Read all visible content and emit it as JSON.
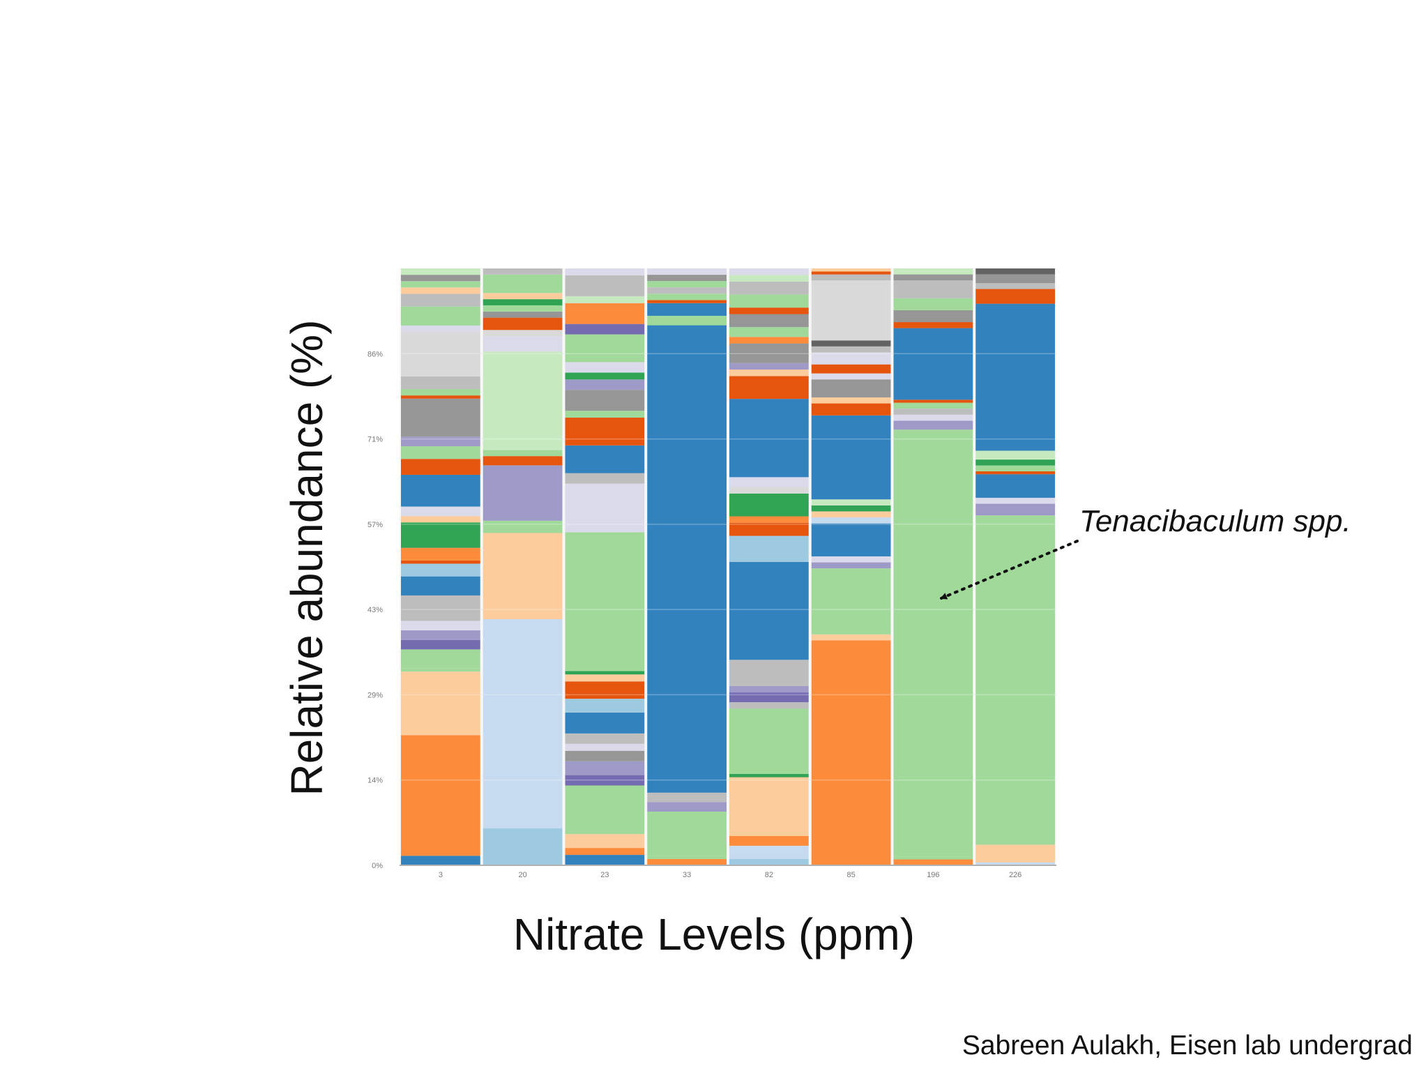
{
  "credit": "Sabreen Aulakh, Eisen lab undergrad",
  "chart_data": {
    "type": "bar",
    "stacked": true,
    "normalized": true,
    "xlabel": "Nitrate Levels (ppm)",
    "ylabel": "Relative abundance (%)",
    "categories": [
      "3",
      "20",
      "23",
      "33",
      "82",
      "85",
      "196",
      "226"
    ],
    "y_ticks": [
      "0%",
      "14%",
      "29%",
      "43%",
      "57%",
      "71%",
      "86%"
    ],
    "ylim": [
      0,
      100
    ],
    "grid": true,
    "colors": {
      "orange": "#fd8b3c",
      "peach": "#fdcc9c",
      "dark_orange": "#e6550d",
      "blue": "#3182bd",
      "light_blue": "#9ecae1",
      "pale_blue": "#c6dbef",
      "green": "#a1d99b",
      "pale_green": "#c7e9c0",
      "dark_green": "#31a354",
      "purple": "#9e9ac8",
      "dark_purple": "#756bb1",
      "lavender": "#dadaeb",
      "gray": "#969696",
      "light_gray": "#bdbdbd",
      "pale_gray": "#d9d9d9",
      "dark_gray": "#636363"
    },
    "stacks": [
      {
        "category": "3",
        "segments": [
          {
            "color": "blue",
            "value": 1.5
          },
          {
            "color": "orange",
            "value": 19
          },
          {
            "color": "peach",
            "value": 10
          },
          {
            "color": "green",
            "value": 0.5
          },
          {
            "color": "green",
            "value": 3
          },
          {
            "color": "dark_purple",
            "value": 1.5
          },
          {
            "color": "purple",
            "value": 1.5
          },
          {
            "color": "lavender",
            "value": 1.5
          },
          {
            "color": "light_gray",
            "value": 4
          },
          {
            "color": "blue",
            "value": 3
          },
          {
            "color": "light_blue",
            "value": 2
          },
          {
            "color": "dark_orange",
            "value": 0.5
          },
          {
            "color": "orange",
            "value": 2
          },
          {
            "color": "dark_green",
            "value": 4
          },
          {
            "color": "peach",
            "value": 1
          },
          {
            "color": "lavender",
            "value": 1.5
          },
          {
            "color": "blue",
            "value": 5
          },
          {
            "color": "dark_orange",
            "value": 2.5
          },
          {
            "color": "green",
            "value": 2
          },
          {
            "color": "purple",
            "value": 1.5
          },
          {
            "color": "gray",
            "value": 6
          },
          {
            "color": "dark_orange",
            "value": 0.5
          },
          {
            "color": "green",
            "value": 1
          },
          {
            "color": "light_gray",
            "value": 2
          },
          {
            "color": "pale_gray",
            "value": 7
          },
          {
            "color": "lavender",
            "value": 1
          },
          {
            "color": "green",
            "value": 3
          },
          {
            "color": "light_gray",
            "value": 2
          },
          {
            "color": "peach",
            "value": 1
          },
          {
            "color": "green",
            "value": 1
          },
          {
            "color": "gray",
            "value": 1
          },
          {
            "color": "pale_green",
            "value": 1
          }
        ]
      },
      {
        "category": "20",
        "segments": [
          {
            "color": "light_blue",
            "value": 6
          },
          {
            "color": "pale_blue",
            "value": 34
          },
          {
            "color": "peach",
            "value": 14
          },
          {
            "color": "green",
            "value": 2
          },
          {
            "color": "purple",
            "value": 9
          },
          {
            "color": "dark_orange",
            "value": 1.5
          },
          {
            "color": "green",
            "value": 1
          },
          {
            "color": "pale_green",
            "value": 16
          },
          {
            "color": "lavender",
            "value": 2.5
          },
          {
            "color": "pale_gray",
            "value": 1
          },
          {
            "color": "dark_orange",
            "value": 2
          },
          {
            "color": "gray",
            "value": 1
          },
          {
            "color": "green",
            "value": 1
          },
          {
            "color": "dark_green",
            "value": 1
          },
          {
            "color": "peach",
            "value": 1
          },
          {
            "color": "green",
            "value": 3
          },
          {
            "color": "light_gray",
            "value": 1
          }
        ]
      },
      {
        "category": "23",
        "segments": [
          {
            "color": "blue",
            "value": 1.5
          },
          {
            "color": "orange",
            "value": 1
          },
          {
            "color": "peach",
            "value": 2
          },
          {
            "color": "green",
            "value": 7
          },
          {
            "color": "dark_purple",
            "value": 1.5
          },
          {
            "color": "purple",
            "value": 2
          },
          {
            "color": "gray",
            "value": 1.5
          },
          {
            "color": "lavender",
            "value": 1
          },
          {
            "color": "light_gray",
            "value": 1.5
          },
          {
            "color": "blue",
            "value": 3
          },
          {
            "color": "light_blue",
            "value": 2
          },
          {
            "color": "dark_orange",
            "value": 2.5
          },
          {
            "color": "peach",
            "value": 1
          },
          {
            "color": "dark_green",
            "value": 0.5
          },
          {
            "color": "green",
            "value": 20
          },
          {
            "color": "lavender",
            "value": 7
          },
          {
            "color": "light_gray",
            "value": 1.5
          },
          {
            "color": "blue",
            "value": 4
          },
          {
            "color": "dark_orange",
            "value": 4
          },
          {
            "color": "green",
            "value": 1
          },
          {
            "color": "gray",
            "value": 3
          },
          {
            "color": "purple",
            "value": 1.5
          },
          {
            "color": "dark_green",
            "value": 1
          },
          {
            "color": "lavender",
            "value": 1.5
          },
          {
            "color": "green",
            "value": 4
          },
          {
            "color": "dark_purple",
            "value": 1.5
          },
          {
            "color": "orange",
            "value": 3
          },
          {
            "color": "pale_green",
            "value": 1
          },
          {
            "color": "light_gray",
            "value": 3
          },
          {
            "color": "lavender",
            "value": 1
          }
        ]
      },
      {
        "category": "33",
        "segments": [
          {
            "color": "orange",
            "value": 1
          },
          {
            "color": "green",
            "value": 0.5
          },
          {
            "color": "green",
            "value": 7
          },
          {
            "color": "purple",
            "value": 1.5
          },
          {
            "color": "light_gray",
            "value": 1.5
          },
          {
            "color": "blue",
            "value": 74
          },
          {
            "color": "green",
            "value": 1.5
          },
          {
            "color": "blue",
            "value": 2
          },
          {
            "color": "dark_orange",
            "value": 0.5
          },
          {
            "color": "green",
            "value": 1
          },
          {
            "color": "light_gray",
            "value": 1
          },
          {
            "color": "green",
            "value": 1
          },
          {
            "color": "gray",
            "value": 1
          },
          {
            "color": "lavender",
            "value": 1
          }
        ]
      },
      {
        "category": "82",
        "segments": [
          {
            "color": "light_blue",
            "value": 1
          },
          {
            "color": "pale_blue",
            "value": 2
          },
          {
            "color": "orange",
            "value": 1.5
          },
          {
            "color": "peach",
            "value": 9
          },
          {
            "color": "dark_green",
            "value": 0.5
          },
          {
            "color": "green",
            "value": 10
          },
          {
            "color": "light_gray",
            "value": 1
          },
          {
            "color": "dark_purple",
            "value": 1.5
          },
          {
            "color": "purple",
            "value": 1
          },
          {
            "color": "light_gray",
            "value": 4
          },
          {
            "color": "blue",
            "value": 15
          },
          {
            "color": "light_blue",
            "value": 4
          },
          {
            "color": "dark_orange",
            "value": 2
          },
          {
            "color": "orange",
            "value": 1
          },
          {
            "color": "dark_green",
            "value": 3.5
          },
          {
            "color": "pale_gray",
            "value": 1
          },
          {
            "color": "lavender",
            "value": 1.5
          },
          {
            "color": "blue",
            "value": 12
          },
          {
            "color": "dark_orange",
            "value": 3.5
          },
          {
            "color": "peach",
            "value": 1
          },
          {
            "color": "purple",
            "value": 1
          },
          {
            "color": "gray",
            "value": 3
          },
          {
            "color": "orange",
            "value": 1
          },
          {
            "color": "green",
            "value": 1.5
          },
          {
            "color": "gray",
            "value": 2
          },
          {
            "color": "dark_orange",
            "value": 1
          },
          {
            "color": "green",
            "value": 2
          },
          {
            "color": "light_gray",
            "value": 2
          },
          {
            "color": "pale_green",
            "value": 1
          },
          {
            "color": "lavender",
            "value": 1
          }
        ]
      },
      {
        "category": "85",
        "segments": [
          {
            "color": "orange",
            "value": 37.5
          },
          {
            "color": "peach",
            "value": 1
          },
          {
            "color": "green",
            "value": 11
          },
          {
            "color": "purple",
            "value": 1
          },
          {
            "color": "lavender",
            "value": 1
          },
          {
            "color": "blue",
            "value": 5.5
          },
          {
            "color": "pale_blue",
            "value": 1
          },
          {
            "color": "peach",
            "value": 1
          },
          {
            "color": "dark_green",
            "value": 1
          },
          {
            "color": "pale_green",
            "value": 1
          },
          {
            "color": "blue",
            "value": 14
          },
          {
            "color": "dark_orange",
            "value": 2
          },
          {
            "color": "peach",
            "value": 1
          },
          {
            "color": "gray",
            "value": 3
          },
          {
            "color": "lavender",
            "value": 1
          },
          {
            "color": "dark_orange",
            "value": 1.5
          },
          {
            "color": "lavender",
            "value": 2
          },
          {
            "color": "light_gray",
            "value": 1
          },
          {
            "color": "dark_gray",
            "value": 1
          },
          {
            "color": "pale_gray",
            "value": 10
          },
          {
            "color": "light_gray",
            "value": 1
          },
          {
            "color": "dark_orange",
            "value": 0.5
          },
          {
            "color": "peach",
            "value": 0.5
          }
        ]
      },
      {
        "category": "196",
        "segments": [
          {
            "color": "orange",
            "value": 1
          },
          {
            "color": "green",
            "value": 0.5
          },
          {
            "color": "green",
            "value": 71.5
          },
          {
            "color": "purple",
            "value": 1.5
          },
          {
            "color": "lavender",
            "value": 1
          },
          {
            "color": "light_gray",
            "value": 1
          },
          {
            "color": "green",
            "value": 1
          },
          {
            "color": "dark_orange",
            "value": 0.5
          },
          {
            "color": "blue",
            "value": 12
          },
          {
            "color": "dark_orange",
            "value": 1
          },
          {
            "color": "gray",
            "value": 2
          },
          {
            "color": "green",
            "value": 2
          },
          {
            "color": "light_gray",
            "value": 3
          },
          {
            "color": "gray",
            "value": 1
          },
          {
            "color": "pale_green",
            "value": 1
          }
        ]
      },
      {
        "category": "226",
        "segments": [
          {
            "color": "pale_blue",
            "value": 0.5
          },
          {
            "color": "peach",
            "value": 3
          },
          {
            "color": "green",
            "value": 56
          },
          {
            "color": "purple",
            "value": 2
          },
          {
            "color": "lavender",
            "value": 1
          },
          {
            "color": "blue",
            "value": 4
          },
          {
            "color": "dark_orange",
            "value": 0.5
          },
          {
            "color": "green",
            "value": 1
          },
          {
            "color": "dark_green",
            "value": 1
          },
          {
            "color": "pale_green",
            "value": 1.5
          },
          {
            "color": "blue",
            "value": 25
          },
          {
            "color": "dark_orange",
            "value": 2.5
          },
          {
            "color": "light_gray",
            "value": 1
          },
          {
            "color": "gray",
            "value": 1.5
          },
          {
            "color": "dark_gray",
            "value": 1
          }
        ]
      }
    ],
    "annotation": {
      "text": "Tenacibaculum spp.",
      "points_to": {
        "category": "196",
        "value": 45
      }
    }
  }
}
